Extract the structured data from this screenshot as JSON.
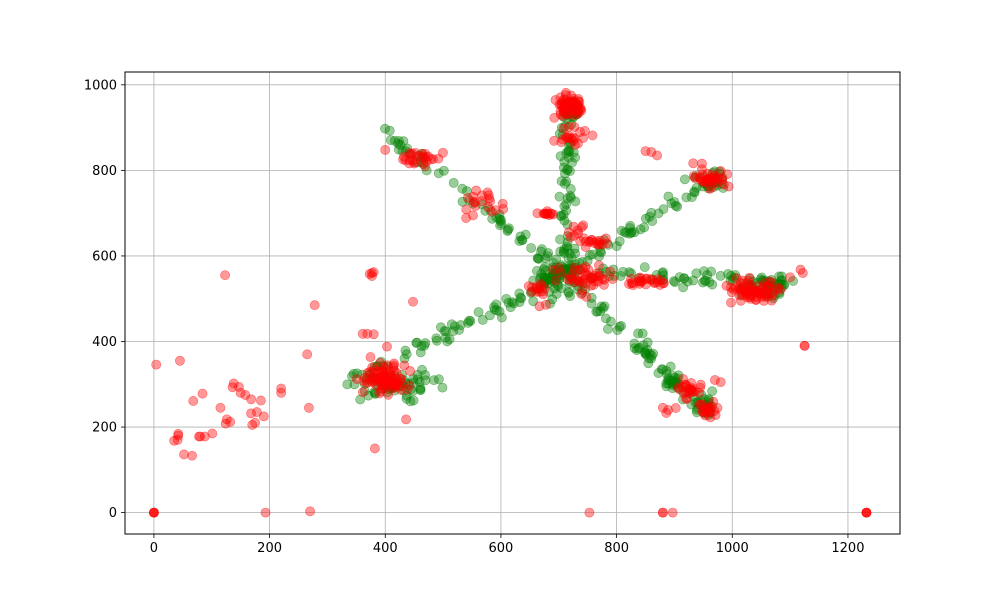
{
  "chart_data": {
    "type": "scatter",
    "title": "",
    "xlabel": "",
    "ylabel": "",
    "xlim": [
      -50,
      1290
    ],
    "ylim": [
      -50,
      1030
    ],
    "xticks": [
      0,
      200,
      400,
      600,
      800,
      1000,
      1200
    ],
    "yticks": [
      0,
      200,
      400,
      600,
      800,
      1000
    ],
    "grid": true,
    "series": [
      {
        "color": "#008000",
        "opacity": 0.4,
        "marker": "circle",
        "clusters": [
          {
            "x": 700,
            "y": 550,
            "spread": [
              45,
              45
            ],
            "n": 70
          },
          {
            "x": 720,
            "y": 940,
            "spread": [
              18,
              22
            ],
            "n": 25
          },
          {
            "x": 1050,
            "y": 525,
            "spread": [
              40,
              20
            ],
            "n": 35
          },
          {
            "x": 960,
            "y": 780,
            "spread": [
              30,
              20
            ],
            "n": 20
          },
          {
            "x": 950,
            "y": 250,
            "spread": [
              20,
              25
            ],
            "n": 20
          },
          {
            "x": 900,
            "y": 300,
            "spread": [
              20,
              20
            ],
            "n": 15
          },
          {
            "x": 420,
            "y": 300,
            "spread": [
              60,
              35
            ],
            "n": 55
          }
        ],
        "arms": [
          {
            "from": [
              710,
              560
            ],
            "to": [
              720,
              950
            ],
            "width": 14,
            "n": 60
          },
          {
            "from": [
              710,
              560
            ],
            "to": [
              1090,
              540
            ],
            "width": 14,
            "n": 65
          },
          {
            "from": [
              710,
              560
            ],
            "to": [
              985,
              800
            ],
            "width": 12,
            "n": 55
          },
          {
            "from": [
              710,
              560
            ],
            "to": [
              960,
              230
            ],
            "width": 14,
            "n": 60
          },
          {
            "from": [
              710,
              560
            ],
            "to": [
              395,
              895
            ],
            "width": 12,
            "n": 60
          },
          {
            "from": [
              710,
              560
            ],
            "to": [
              330,
              295
            ],
            "width": 16,
            "n": 70
          }
        ]
      },
      {
        "color": "#ff0000",
        "opacity": 0.4,
        "marker": "circle",
        "clusters": [
          {
            "x": 720,
            "y": 950,
            "spread": [
              22,
              25
            ],
            "n": 55
          },
          {
            "x": 720,
            "y": 880,
            "spread": [
              25,
              20
            ],
            "n": 20
          },
          {
            "x": 1040,
            "y": 520,
            "spread": [
              40,
              22
            ],
            "n": 70
          },
          {
            "x": 960,
            "y": 780,
            "spread": [
              28,
              22
            ],
            "n": 35
          },
          {
            "x": 920,
            "y": 290,
            "spread": [
              20,
              25
            ],
            "n": 25
          },
          {
            "x": 960,
            "y": 240,
            "spread": [
              15,
              18
            ],
            "n": 20
          },
          {
            "x": 400,
            "y": 310,
            "spread": [
              35,
              30
            ],
            "n": 85
          },
          {
            "x": 460,
            "y": 830,
            "spread": [
              35,
              15
            ],
            "n": 25
          },
          {
            "x": 745,
            "y": 550,
            "spread": [
              40,
              30
            ],
            "n": 45
          },
          {
            "x": 660,
            "y": 510,
            "spread": [
              20,
              25
            ],
            "n": 15
          },
          {
            "x": 680,
            "y": 700,
            "spread": [
              12,
              10
            ],
            "n": 12
          },
          {
            "x": 770,
            "y": 630,
            "spread": [
              25,
              15
            ],
            "n": 15
          },
          {
            "x": 730,
            "y": 650,
            "spread": [
              15,
              15
            ],
            "n": 10
          },
          {
            "x": 850,
            "y": 540,
            "spread": [
              40,
              10
            ],
            "n": 25
          },
          {
            "x": 570,
            "y": 720,
            "spread": [
              40,
              35
            ],
            "n": 20
          }
        ],
        "points": [
          [
            0,
            0
          ],
          [
            0,
            0
          ],
          [
            0,
            0
          ],
          [
            0,
            0
          ],
          [
            1232,
            0
          ],
          [
            1232,
            0
          ],
          [
            1232,
            0
          ],
          [
            1232,
            0
          ],
          [
            880,
            0
          ],
          [
            880,
            0
          ],
          [
            897,
            0
          ],
          [
            753,
            0
          ],
          [
            193,
            0
          ],
          [
            270,
            3
          ],
          [
            1125,
            390
          ],
          [
            1125,
            390
          ],
          [
            1118,
            568
          ],
          [
            377,
            560
          ],
          [
            377,
            553
          ],
          [
            373,
            558
          ],
          [
            380,
            562
          ],
          [
            123,
            555
          ],
          [
            4,
            346
          ],
          [
            45,
            355
          ],
          [
            278,
            485
          ],
          [
            265,
            370
          ],
          [
            448,
            493
          ],
          [
            400,
            848
          ],
          [
            403,
            388
          ],
          [
            380,
            417
          ],
          [
            361,
            418
          ],
          [
            369,
            418
          ],
          [
            382,
            150
          ],
          [
            436,
            218
          ],
          [
            268,
            245
          ],
          [
            220,
            290
          ],
          [
            220,
            280
          ],
          [
            138,
            302
          ],
          [
            136,
            293
          ],
          [
            147,
            294
          ],
          [
            150,
            280
          ],
          [
            158,
            275
          ],
          [
            168,
            265
          ],
          [
            185,
            262
          ],
          [
            190,
            225
          ],
          [
            168,
            232
          ],
          [
            178,
            235
          ],
          [
            170,
            205
          ],
          [
            175,
            210
          ],
          [
            126,
            218
          ],
          [
            124,
            208
          ],
          [
            132,
            212
          ],
          [
            115,
            245
          ],
          [
            84,
            278
          ],
          [
            68,
            261
          ],
          [
            101,
            185
          ],
          [
            80,
            178
          ],
          [
            88,
            178
          ],
          [
            42,
            180
          ],
          [
            41,
            170
          ],
          [
            35,
            168
          ],
          [
            42,
            184
          ],
          [
            52,
            136
          ],
          [
            66,
            133
          ],
          [
            78,
            178
          ],
          [
            850,
            845
          ],
          [
            870,
            835
          ],
          [
            860,
            843
          ],
          [
            1122,
            560
          ],
          [
            1100,
            550
          ],
          [
            880,
            245
          ],
          [
            889,
            240
          ],
          [
            886,
            233
          ],
          [
            970,
            310
          ],
          [
            980,
            305
          ]
        ]
      }
    ]
  }
}
